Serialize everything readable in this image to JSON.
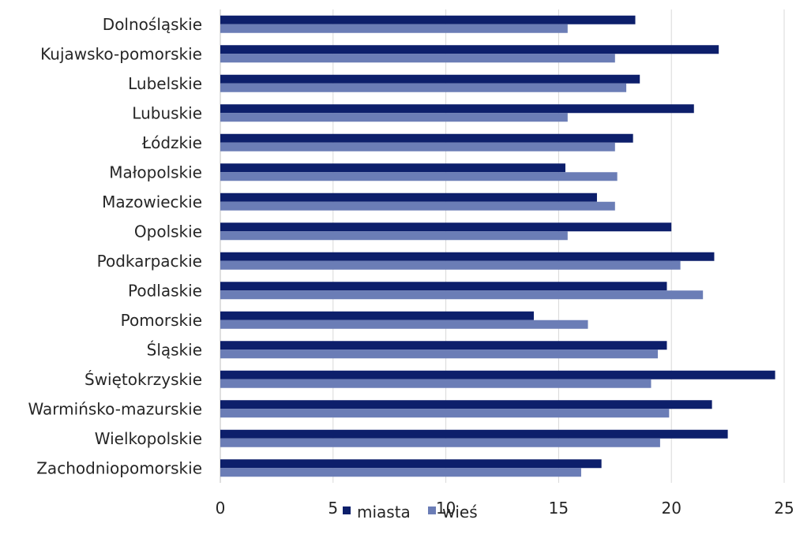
{
  "chart_data": {
    "type": "bar",
    "orientation": "horizontal",
    "title": "",
    "xlabel": "",
    "ylabel": "",
    "xlim": [
      0,
      25
    ],
    "x_ticks": [
      0,
      5,
      10,
      15,
      20,
      25
    ],
    "grid": true,
    "legend_position": "bottom",
    "categories": [
      "Dolnośląskie",
      "Kujawsko-pomorskie",
      "Lubelskie",
      "Lubuskie",
      "Łódzkie",
      "Małopolskie",
      "Mazowieckie",
      "Opolskie",
      "Podkarpackie",
      "Podlaskie",
      "Pomorskie",
      "Śląskie",
      "Świętokrzyskie",
      "Warmińsko-mazurskie",
      "Wielkopolskie",
      "Zachodniopomorskie"
    ],
    "series": [
      {
        "name": "miasta",
        "color": "#0d1f6b",
        "values": [
          18.4,
          22.1,
          18.6,
          21.0,
          18.3,
          15.3,
          16.7,
          20.0,
          21.9,
          19.8,
          13.9,
          19.8,
          24.6,
          21.8,
          22.5,
          16.9
        ]
      },
      {
        "name": "wieś",
        "color": "#6b7db6",
        "values": [
          15.4,
          17.5,
          18.0,
          15.4,
          17.5,
          17.6,
          17.5,
          15.4,
          20.4,
          21.4,
          16.3,
          19.4,
          19.1,
          19.9,
          19.5,
          16.0
        ]
      }
    ]
  }
}
